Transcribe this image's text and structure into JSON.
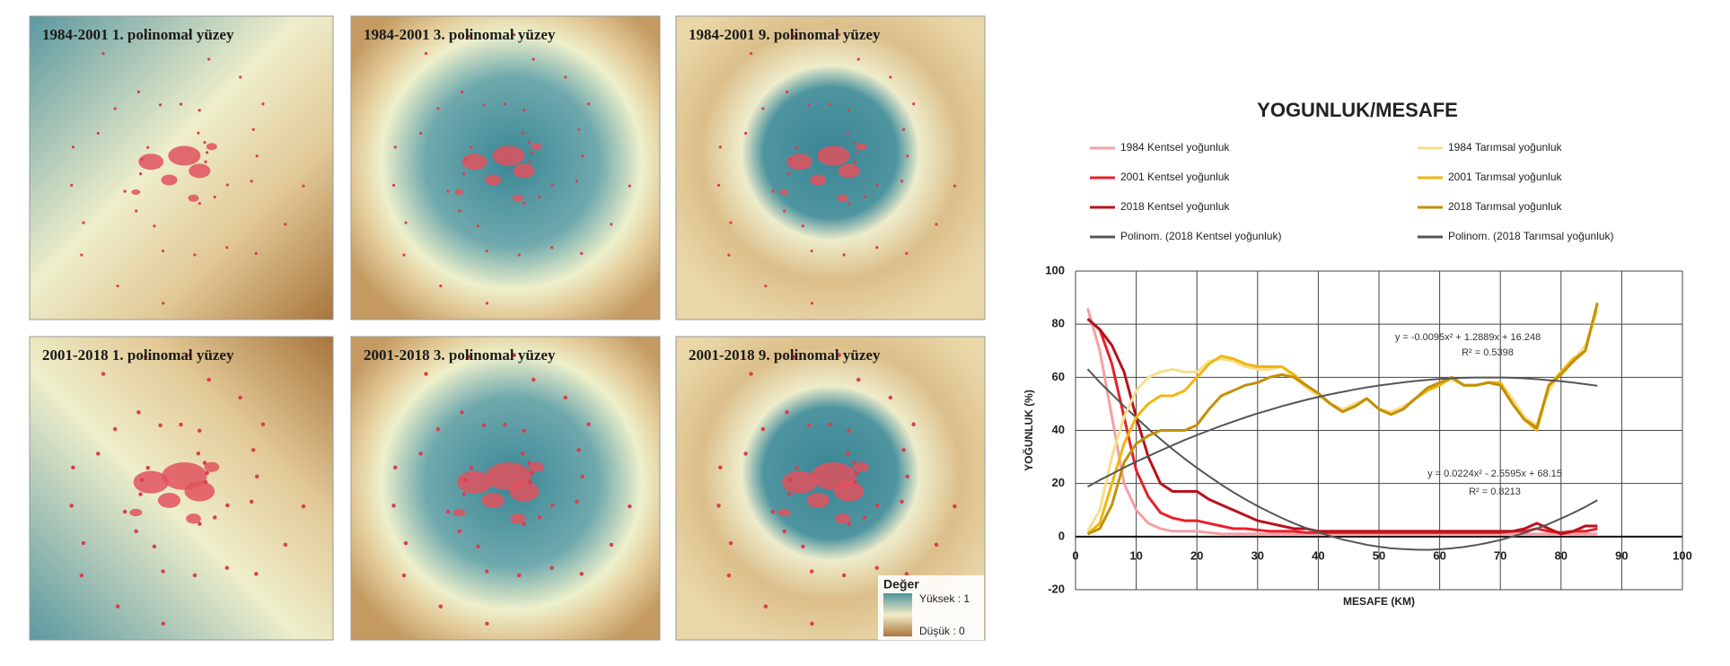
{
  "maps": {
    "panels": [
      {
        "title": "1984-2001 1. polinomal yüzey"
      },
      {
        "title": "1984-2001 3. polinomal yüzey"
      },
      {
        "title": "1984-2001 9. polinomal yüzey"
      },
      {
        "title": "2001-2018 1. polinomal yüzey"
      },
      {
        "title": "2001-2018 3. polinomal yüzey"
      },
      {
        "title": "2001-2018 9. polinomal yüzey"
      }
    ],
    "legend": {
      "title": "Değer",
      "high": "Yüksek : 1",
      "low": "Düşük : 0"
    }
  },
  "chart_data": {
    "type": "line",
    "title": "YOGUNLUK/MESAFE",
    "x_label": "MESAFE (KM)",
    "y_label": "YOĞUNLUK (%)",
    "xlim": [
      0,
      100
    ],
    "ylim": [
      -20,
      100
    ],
    "xticks": [
      0,
      10,
      20,
      30,
      40,
      50,
      60,
      70,
      80,
      90,
      100
    ],
    "yticks": [
      -20,
      0,
      20,
      40,
      60,
      80,
      100
    ],
    "grid": true,
    "x": [
      2,
      4,
      6,
      8,
      10,
      12,
      14,
      16,
      18,
      20,
      22,
      24,
      26,
      28,
      30,
      32,
      34,
      36,
      38,
      40,
      42,
      44,
      46,
      48,
      50,
      52,
      54,
      56,
      58,
      60,
      62,
      64,
      66,
      68,
      70,
      72,
      74,
      76,
      78,
      80,
      82,
      84,
      86
    ],
    "series": [
      {
        "name": "1984 Kentsel yoğunluk",
        "color": "#f4a0a6",
        "values": [
          86,
          70,
          45,
          20,
          10,
          5,
          3,
          2,
          2,
          2,
          1.5,
          1,
          1,
          1,
          1,
          1,
          1,
          1,
          1,
          1,
          1,
          1,
          1,
          1,
          1,
          1,
          1,
          1,
          1,
          1,
          1,
          1,
          1,
          1,
          1,
          1,
          1,
          1,
          1,
          1,
          1,
          1,
          1
        ]
      },
      {
        "name": "2001 Kentsel yoğunluk",
        "color": "#e8202a",
        "values": [
          82,
          78,
          65,
          45,
          25,
          15,
          9,
          7,
          6,
          6,
          5,
          4,
          3,
          3,
          2.5,
          2,
          2,
          2,
          1.5,
          1.5,
          1.5,
          1.5,
          1.5,
          1.5,
          1.5,
          1.5,
          1.5,
          1.5,
          1.5,
          1.5,
          1.5,
          1.5,
          1.5,
          1.5,
          1.5,
          2,
          2,
          3,
          2,
          1.5,
          2,
          2,
          3
        ]
      },
      {
        "name": "2018 Kentsel yoğunluk",
        "color": "#b8121b",
        "values": [
          82,
          78,
          72,
          62,
          45,
          30,
          20,
          17,
          17,
          17,
          14,
          12,
          10,
          8,
          6,
          5,
          4,
          3,
          3,
          2,
          2,
          2,
          2,
          2,
          2,
          2,
          2,
          2,
          2,
          2,
          2,
          2,
          2,
          2,
          2,
          2,
          3,
          5,
          3,
          1,
          2,
          4,
          4
        ]
      },
      {
        "name": "Polinom. (2018 Kentsel yoğunluk)",
        "color": "#555555",
        "values": [
          63.1,
          58.1,
          53.6,
          49.1,
          44.8,
          40.6,
          36.7,
          32.9,
          29.3,
          25.9,
          22.7,
          19.6,
          16.7,
          14,
          11.5,
          9.2,
          7,
          5,
          3.2,
          1.6,
          0.2,
          -1.1,
          -2.1,
          -3.1,
          -3.8,
          -4.4,
          -4.7,
          -4.9,
          -5,
          -4.8,
          -4.4,
          -3.9,
          -3.2,
          -2.3,
          -1.3,
          0,
          1.4,
          3,
          4.8,
          6.8,
          8.9,
          11.2,
          13.7
        ]
      },
      {
        "name": "1984 Tarımsal yoğunluk",
        "color": "#f6df8c",
        "values": [
          2,
          10,
          30,
          45,
          55,
          60,
          62,
          63,
          62,
          62,
          66,
          67,
          66,
          64,
          63,
          63,
          64,
          60,
          56,
          53,
          50,
          48,
          50,
          52,
          48,
          47,
          49,
          52,
          55,
          58,
          59,
          57,
          57,
          58,
          58,
          52,
          45,
          42,
          55,
          62,
          66,
          72,
          85
        ]
      },
      {
        "name": "2001 Tarımsal yoğunluk",
        "color": "#f0b60e",
        "values": [
          1,
          5,
          20,
          35,
          45,
          50,
          53,
          53,
          55,
          60,
          65,
          68,
          67,
          65,
          64,
          64,
          64,
          61,
          57,
          54,
          50,
          47,
          49,
          52,
          48,
          46,
          48,
          52,
          55,
          57,
          60,
          57,
          57,
          58,
          58,
          50,
          44,
          40,
          57,
          62,
          67,
          70,
          88
        ]
      },
      {
        "name": "2018 Tarımsal yoğunluk",
        "color": "#c29008",
        "values": [
          1,
          3,
          12,
          28,
          35,
          38,
          40,
          40,
          40,
          42,
          48,
          53,
          55,
          57,
          58,
          60,
          61,
          60,
          57,
          54,
          50,
          47,
          49,
          52,
          48,
          46,
          48,
          52,
          56,
          58,
          60,
          57,
          57,
          58,
          57,
          50,
          44,
          41,
          57,
          61,
          66,
          70,
          88
        ]
      },
      {
        "name": "Polinom. (2018 Tarımsal yoğunluk)",
        "color": "#555555",
        "values": [
          18.8,
          21.3,
          23.6,
          26,
          28.2,
          30.3,
          32.4,
          34.4,
          36.4,
          38.2,
          40,
          41.7,
          43.3,
          44.9,
          46.4,
          47.7,
          49.1,
          50.3,
          51.5,
          52.6,
          53.6,
          54.5,
          55.4,
          56.2,
          56.9,
          57.5,
          58.1,
          58.6,
          59,
          59.4,
          59.6,
          59.8,
          59.9,
          59.9,
          59.9,
          59.8,
          59.6,
          59.3,
          58.9,
          58.5,
          58,
          57.4,
          56.8
        ]
      }
    ],
    "annotations": [
      "y = -0.0095x² + 1.2889x + 16.248",
      "R² = 0.5398",
      "y = 0.0224x² - 2.5595x + 68.15",
      "R² = 0.8213"
    ]
  }
}
